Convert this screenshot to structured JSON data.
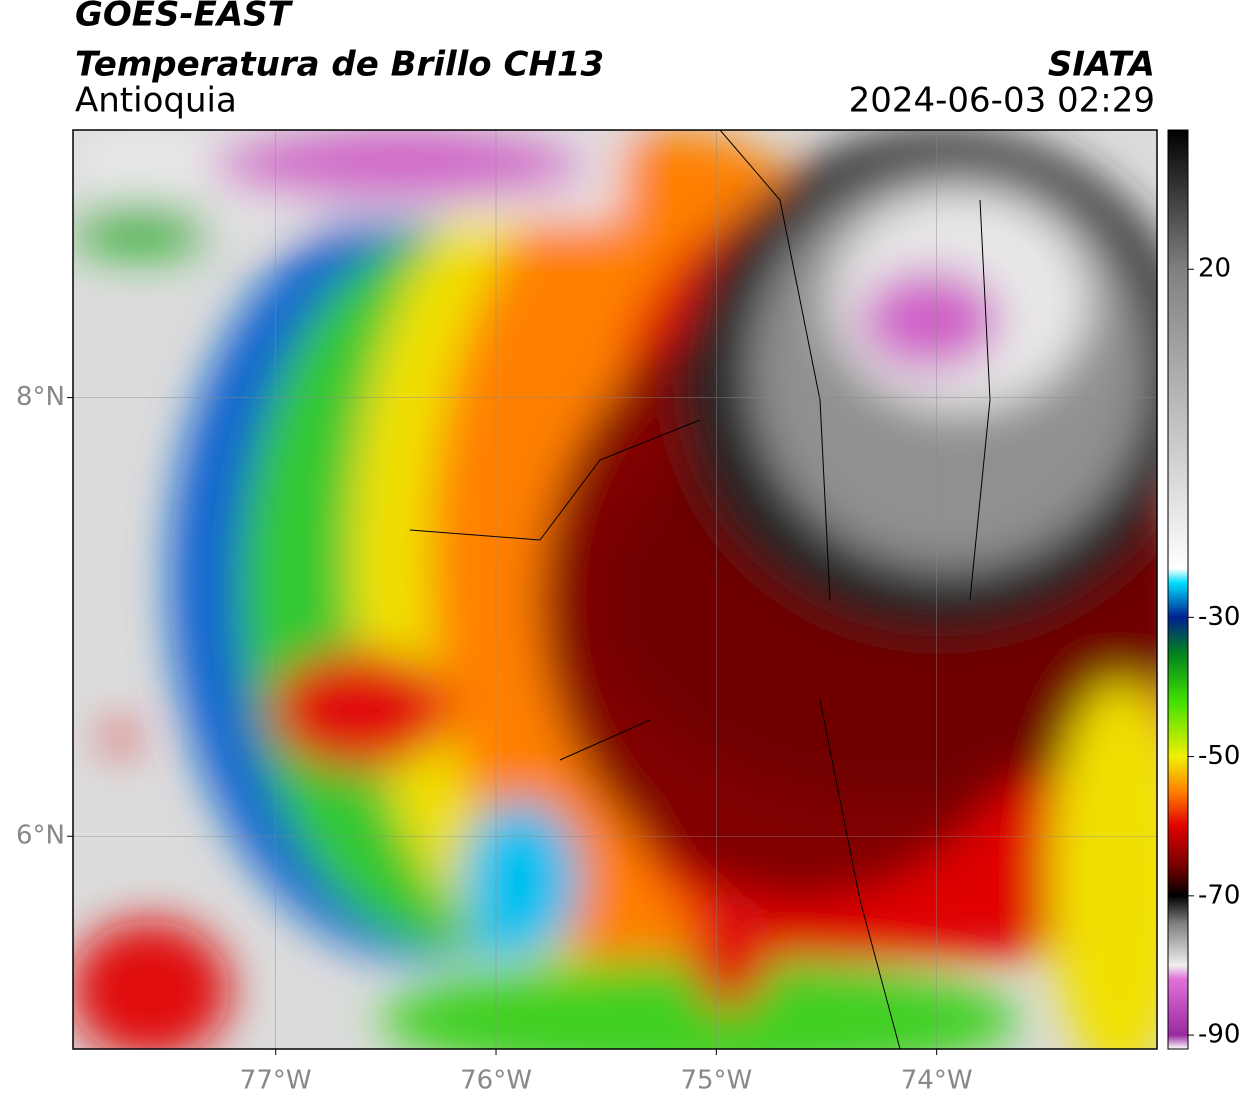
{
  "header": {
    "title": "GOES-EAST",
    "subtitle": "Temperatura de Brillo CH13",
    "source": "SIATA",
    "region": "Antioquia",
    "datetime": "2024-06-03 02:29"
  },
  "map": {
    "lonlim": [
      -77.92,
      -73.0
    ],
    "latlim": [
      5.03,
      9.22
    ],
    "lon_ticks": [
      {
        "value": -77,
        "label": "77°W"
      },
      {
        "value": -76,
        "label": "76°W"
      },
      {
        "value": -75,
        "label": "75°W"
      },
      {
        "value": -74,
        "label": "74°W"
      }
    ],
    "lat_ticks": [
      {
        "value": 8,
        "label": "8°N"
      },
      {
        "value": 6,
        "label": "6°N"
      }
    ],
    "grid": true
  },
  "colorbar": {
    "clim": [
      -92,
      40
    ],
    "ticks": [
      20,
      -30,
      -50,
      -70,
      -90
    ],
    "colormap": [
      {
        "value": -92,
        "color": "#ffffff"
      },
      {
        "value": -90,
        "color": "#9a2aa0"
      },
      {
        "value": -82,
        "color": "#e070d8"
      },
      {
        "value": -80,
        "color": "#f0f0f0"
      },
      {
        "value": -74,
        "color": "#808080"
      },
      {
        "value": -70,
        "color": "#000000"
      },
      {
        "value": -66,
        "color": "#700000"
      },
      {
        "value": -60,
        "color": "#e00000"
      },
      {
        "value": -55,
        "color": "#ff8000"
      },
      {
        "value": -50,
        "color": "#f0f000"
      },
      {
        "value": -42,
        "color": "#40e000"
      },
      {
        "value": -35,
        "color": "#008020"
      },
      {
        "value": -30,
        "color": "#002090"
      },
      {
        "value": -25,
        "color": "#00e0ff"
      },
      {
        "value": -23,
        "color": "#ffffff"
      },
      {
        "value": 20,
        "color": "#808080"
      },
      {
        "value": 40,
        "color": "#000000"
      }
    ]
  }
}
